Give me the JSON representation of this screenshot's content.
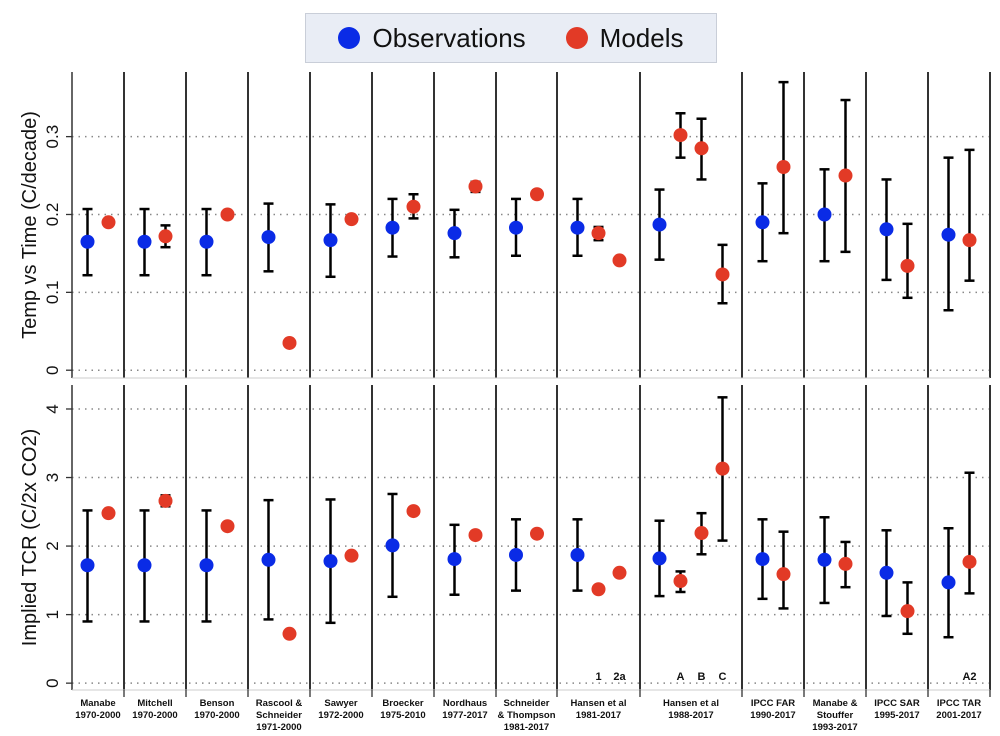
{
  "colors": {
    "observations": "#0a2be6",
    "models": "#e23a26",
    "frame": "#333333",
    "grid": "#888888"
  },
  "legend": {
    "observations": "Observations",
    "models": "Models"
  },
  "chart_data": {
    "type": "scatter",
    "legend_placement": "top",
    "grid": "dotted horizontal",
    "panels": [
      {
        "key": "top",
        "ylabel": "Temp vs Time (C/decade)",
        "ylim": [
          -0.01,
          0.383
        ],
        "yticks": [
          0,
          0.1,
          0.2,
          0.3
        ],
        "yticklabels": [
          "0",
          "0.1",
          "0.2",
          "0.3"
        ]
      },
      {
        "key": "bottom",
        "ylabel": "Implied TCR (C/2x CO2)",
        "ylim": [
          -0.1,
          4.35
        ],
        "yticks": [
          0,
          1,
          2,
          3,
          4
        ],
        "yticklabels": [
          "0",
          "1",
          "2",
          "3",
          "4"
        ]
      }
    ],
    "groups": [
      {
        "name": [
          "Manabe",
          "1970-2000"
        ],
        "obs": {
          "top": [
            0.165,
            0.122,
            0.207
          ],
          "bottom": [
            1.72,
            0.9,
            2.52
          ]
        },
        "models": [
          {
            "label": "",
            "top": [
              0.19,
              null,
              null
            ],
            "bottom": [
              2.48,
              null,
              null
            ]
          }
        ]
      },
      {
        "name": [
          "Mitchell",
          "1970-2000"
        ],
        "obs": {
          "top": [
            0.165,
            0.122,
            0.207
          ],
          "bottom": [
            1.72,
            0.9,
            2.52
          ]
        },
        "models": [
          {
            "label": "",
            "top": [
              0.172,
              0.158,
              0.186
            ],
            "bottom": [
              2.66,
              2.58,
              2.74
            ]
          }
        ]
      },
      {
        "name": [
          "Benson",
          "1970-2000"
        ],
        "obs": {
          "top": [
            0.165,
            0.122,
            0.207
          ],
          "bottom": [
            1.72,
            0.9,
            2.52
          ]
        },
        "models": [
          {
            "label": "",
            "top": [
              0.2,
              null,
              null
            ],
            "bottom": [
              2.29,
              null,
              null
            ]
          }
        ]
      },
      {
        "name": [
          "Rascool &",
          "Schneider",
          "1971-2000"
        ],
        "obs": {
          "top": [
            0.171,
            0.127,
            0.214
          ],
          "bottom": [
            1.8,
            0.93,
            2.67
          ]
        },
        "models": [
          {
            "label": "",
            "top": [
              0.035,
              null,
              null
            ],
            "bottom": [
              0.72,
              null,
              null
            ]
          }
        ]
      },
      {
        "name": [
          "Sawyer",
          "1972-2000"
        ],
        "obs": {
          "top": [
            0.167,
            0.12,
            0.213
          ],
          "bottom": [
            1.78,
            0.88,
            2.68
          ]
        },
        "models": [
          {
            "label": "",
            "top": [
              0.194,
              null,
              null
            ],
            "bottom": [
              1.86,
              null,
              null
            ]
          }
        ]
      },
      {
        "name": [
          "Broecker",
          "1975-2010"
        ],
        "obs": {
          "top": [
            0.183,
            0.146,
            0.22
          ],
          "bottom": [
            2.01,
            1.26,
            2.76
          ]
        },
        "models": [
          {
            "label": "",
            "top": [
              0.21,
              0.195,
              0.226
            ],
            "bottom": [
              2.51,
              null,
              null
            ]
          }
        ]
      },
      {
        "name": [
          "Nordhaus",
          "1977-2017"
        ],
        "obs": {
          "top": [
            0.176,
            0.145,
            0.206
          ],
          "bottom": [
            1.81,
            1.29,
            2.31
          ]
        },
        "models": [
          {
            "label": "",
            "top": [
              0.236,
              0.229,
              0.242
            ],
            "bottom": [
              2.16,
              null,
              null
            ]
          }
        ]
      },
      {
        "name": [
          "Schneider",
          "& Thompson",
          "1981-2017"
        ],
        "obs": {
          "top": [
            0.183,
            0.147,
            0.22
          ],
          "bottom": [
            1.87,
            1.35,
            2.39
          ]
        },
        "models": [
          {
            "label": "",
            "top": [
              0.226,
              0.221,
              0.231
            ],
            "bottom": [
              2.18,
              null,
              null
            ]
          }
        ]
      },
      {
        "name": [
          "Hansen et al",
          "1981-2017"
        ],
        "obs": {
          "top": [
            0.183,
            0.147,
            0.22
          ],
          "bottom": [
            1.87,
            1.35,
            2.39
          ]
        },
        "models": [
          {
            "label": "1",
            "top": [
              0.176,
              0.167,
              0.184
            ],
            "bottom": [
              1.37,
              null,
              null
            ]
          },
          {
            "label": "2a",
            "top": [
              0.141,
              0.137,
              0.145
            ],
            "bottom": [
              1.61,
              null,
              null
            ]
          }
        ]
      },
      {
        "name": [
          "Hansen et al",
          "1988-2017"
        ],
        "obs": {
          "top": [
            0.187,
            0.142,
            0.232
          ],
          "bottom": [
            1.82,
            1.27,
            2.37
          ]
        },
        "models": [
          {
            "label": "A",
            "top": [
              0.302,
              0.273,
              0.33
            ],
            "bottom": [
              1.49,
              1.33,
              1.63
            ]
          },
          {
            "label": "B",
            "top": [
              0.285,
              0.245,
              0.323
            ],
            "bottom": [
              2.19,
              1.88,
              2.48
            ]
          },
          {
            "label": "C",
            "top": [
              0.123,
              0.086,
              0.161
            ],
            "bottom": [
              3.13,
              2.08,
              4.17
            ]
          }
        ]
      },
      {
        "name": [
          "IPCC FAR",
          "1990-2017"
        ],
        "obs": {
          "top": [
            0.19,
            0.14,
            0.24
          ],
          "bottom": [
            1.81,
            1.23,
            2.39
          ]
        },
        "models": [
          {
            "label": "",
            "top": [
              0.261,
              0.176,
              0.37
            ],
            "bottom": [
              1.59,
              1.09,
              2.21
            ]
          }
        ]
      },
      {
        "name": [
          "Manabe &",
          "Stouffer",
          "1993-2017"
        ],
        "obs": {
          "top": [
            0.2,
            0.14,
            0.258
          ],
          "bottom": [
            1.8,
            1.17,
            2.42
          ]
        },
        "models": [
          {
            "label": "",
            "top": [
              0.25,
              0.152,
              0.347
            ],
            "bottom": [
              1.74,
              1.4,
              2.06
            ]
          }
        ]
      },
      {
        "name": [
          "IPCC SAR",
          "1995-2017"
        ],
        "obs": {
          "top": [
            0.181,
            0.116,
            0.245
          ],
          "bottom": [
            1.61,
            0.98,
            2.23
          ]
        },
        "models": [
          {
            "label": "",
            "top": [
              0.134,
              0.093,
              0.188
            ],
            "bottom": [
              1.05,
              0.72,
              1.47
            ]
          }
        ]
      },
      {
        "name": [
          "IPCC TAR",
          "2001-2017"
        ],
        "obs": {
          "top": [
            0.174,
            0.077,
            0.273
          ],
          "bottom": [
            1.47,
            0.67,
            2.26
          ]
        },
        "models": [
          {
            "label": "A2",
            "top": [
              0.167,
              0.115,
              0.283
            ],
            "bottom": [
              1.77,
              1.31,
              3.07
            ]
          }
        ]
      }
    ]
  }
}
